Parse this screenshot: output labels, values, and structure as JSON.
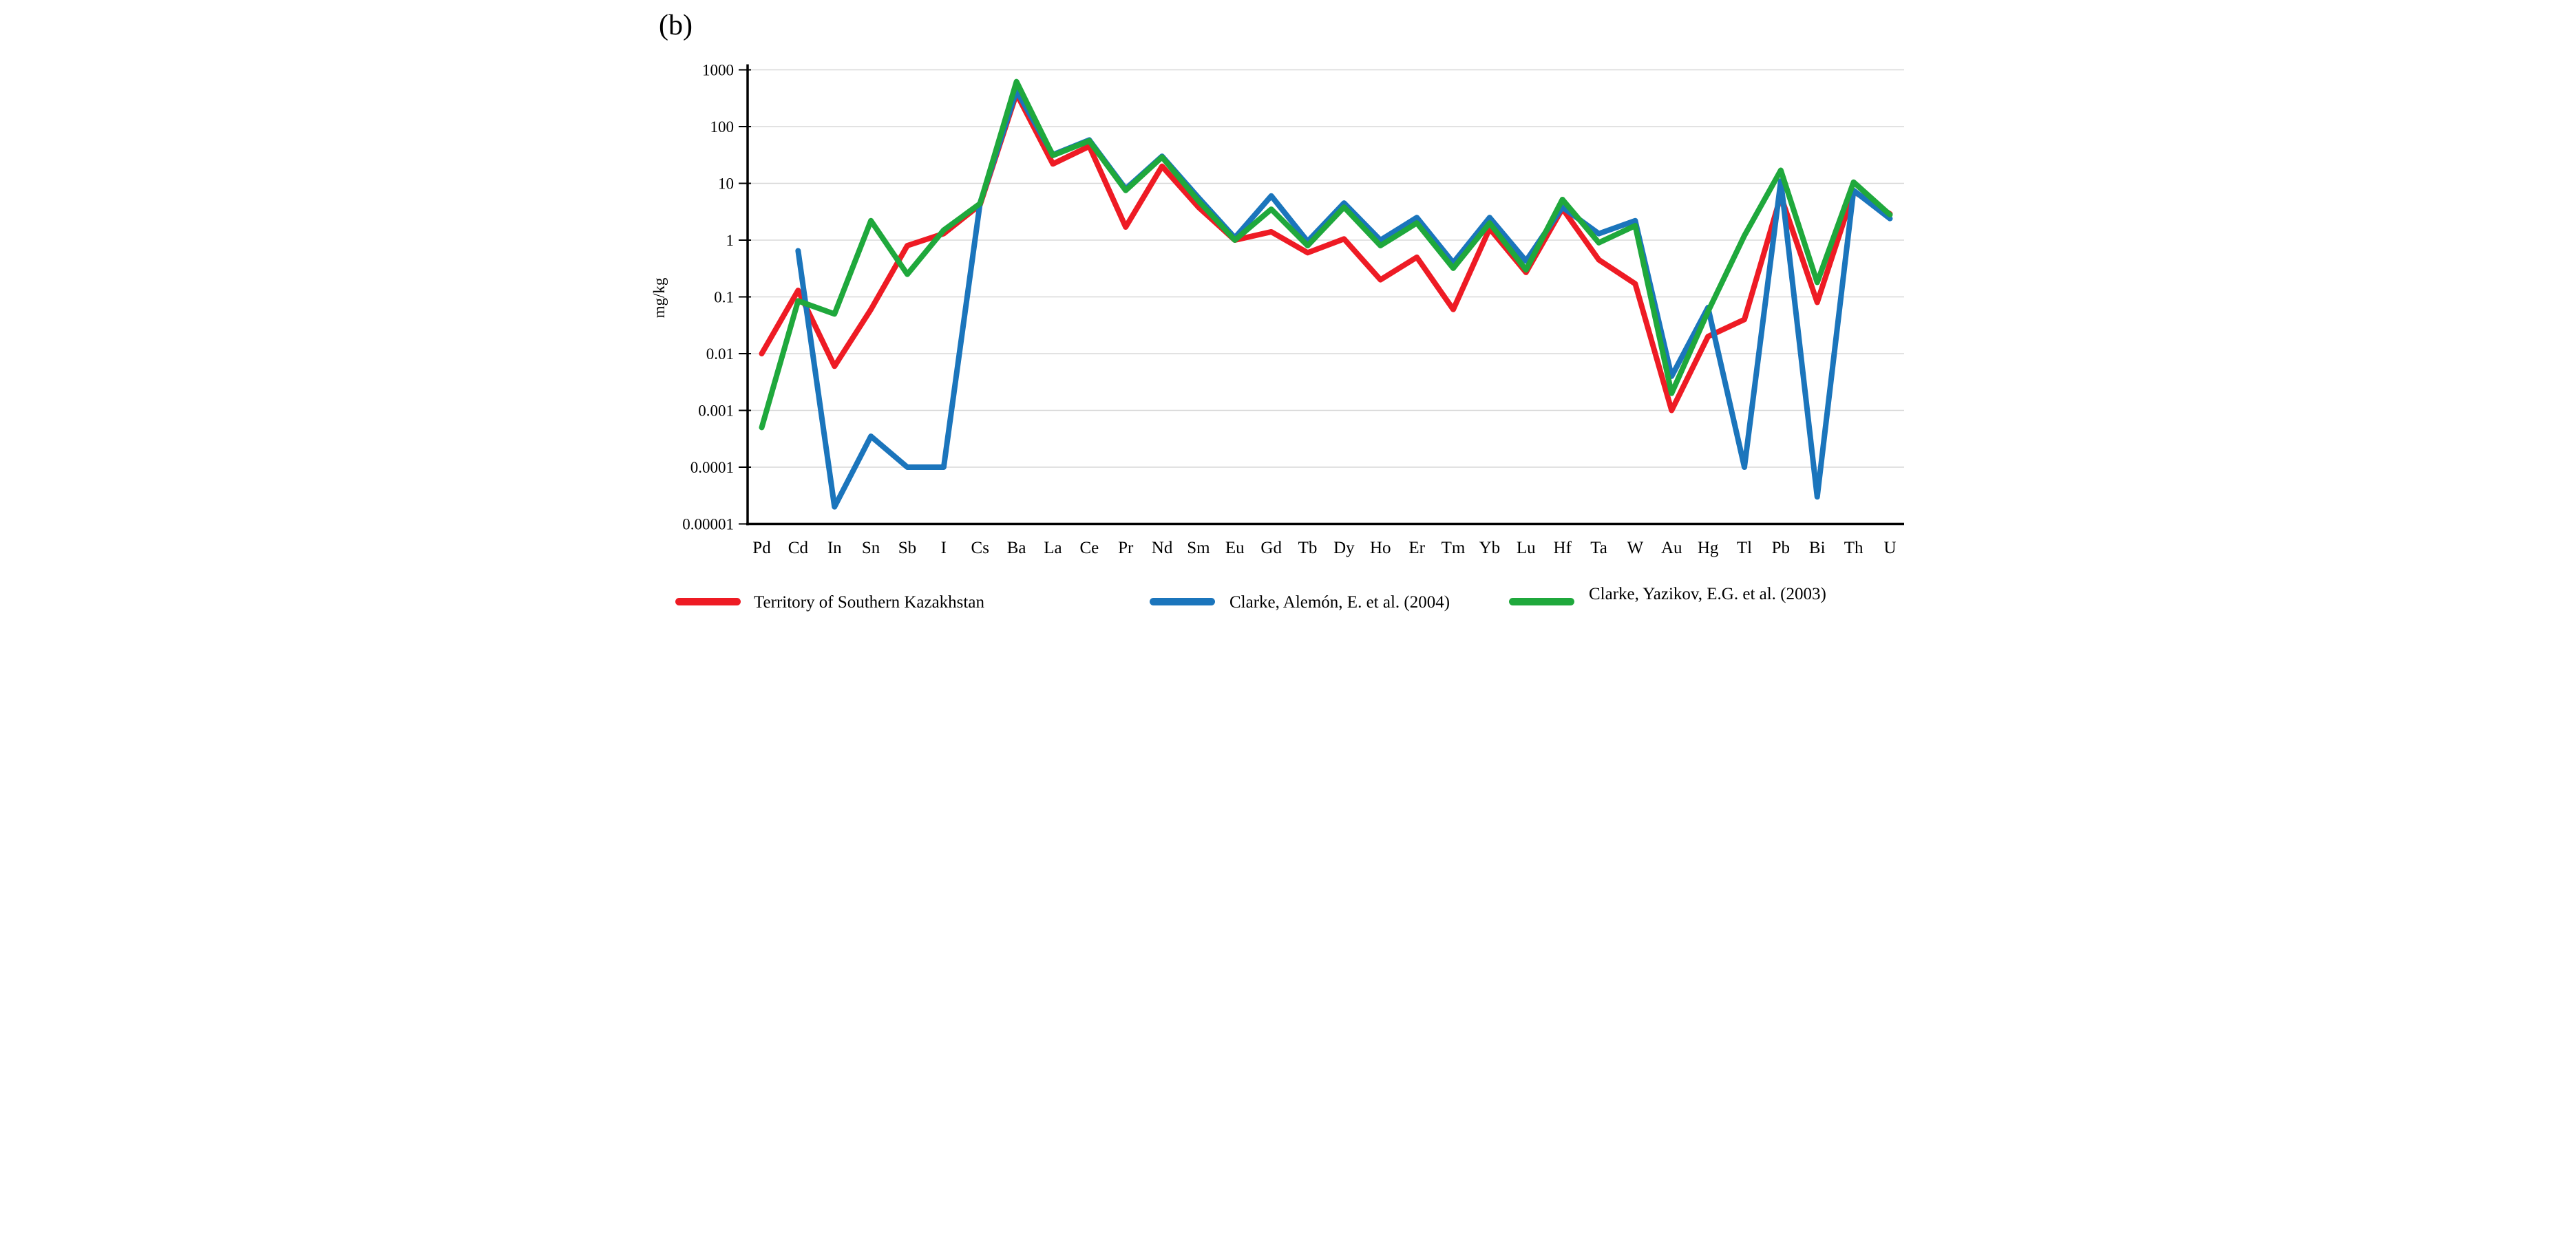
{
  "figure": {
    "panel_label": "(b)",
    "y_axis_title": "mg/kg"
  },
  "chart_data": {
    "type": "line",
    "y_scale": "log",
    "ylim": [
      1e-05,
      1000
    ],
    "grid": "horizontal",
    "legend_position": "bottom",
    "yticks": [
      "1000",
      "100",
      "10",
      "1",
      "0.1",
      "0.01",
      "0.001",
      "0.0001",
      "0.00001"
    ],
    "ylabel": "mg/kg",
    "xlabel": "",
    "categories": [
      "Pd",
      "Cd",
      "In",
      "Sn",
      "Sb",
      "I",
      "Cs",
      "Ba",
      "La",
      "Ce",
      "Pr",
      "Nd",
      "Sm",
      "Eu",
      "Gd",
      "Tb",
      "Dy",
      "Ho",
      "Er",
      "Tm",
      "Yb",
      "Lu",
      "Hf",
      "Ta",
      "W",
      "Au",
      "Hg",
      "Tl",
      "Pb",
      "Bi",
      "Th",
      "U"
    ],
    "series": [
      {
        "name": "Territory of Southern Kazakhstan",
        "color": "#ee1b24",
        "values": [
          0.01,
          0.13,
          0.006,
          0.06,
          0.8,
          1.3,
          4.2,
          380,
          22,
          45,
          1.7,
          20,
          3.8,
          1.0,
          1.4,
          0.6,
          1.05,
          0.2,
          0.5,
          0.06,
          1.6,
          0.27,
          3.6,
          0.45,
          0.17,
          0.001,
          0.02,
          0.04,
          6,
          0.08,
          7.2,
          2.9
        ]
      },
      {
        "name": "Clarke, Alemón, E. et al. (2004)",
        "color": "#1b75bc",
        "values": [
          null,
          0.65,
          2e-05,
          0.00035,
          0.0001,
          0.0001,
          4.5,
          430,
          32,
          58,
          8,
          30,
          5.6,
          1.1,
          6,
          0.95,
          4.5,
          1.0,
          2.5,
          0.4,
          2.5,
          0.43,
          3.8,
          1.3,
          2.2,
          0.004,
          0.065,
          0.0001,
          11,
          3e-05,
          7.5,
          2.4
        ]
      },
      {
        "name": "Clarke,  Yazikov, E.G. et al. (2003)",
        "color": "#1fa83c",
        "values": [
          0.0005,
          0.085,
          0.05,
          2.2,
          0.25,
          1.5,
          4.4,
          620,
          31,
          56,
          7.5,
          29,
          4.9,
          1.0,
          3.5,
          0.8,
          3.8,
          0.8,
          2.0,
          0.32,
          2.0,
          0.3,
          5.2,
          0.9,
          1.8,
          0.002,
          0.055,
          1.2,
          17,
          0.18,
          10.5,
          2.8
        ]
      }
    ]
  }
}
